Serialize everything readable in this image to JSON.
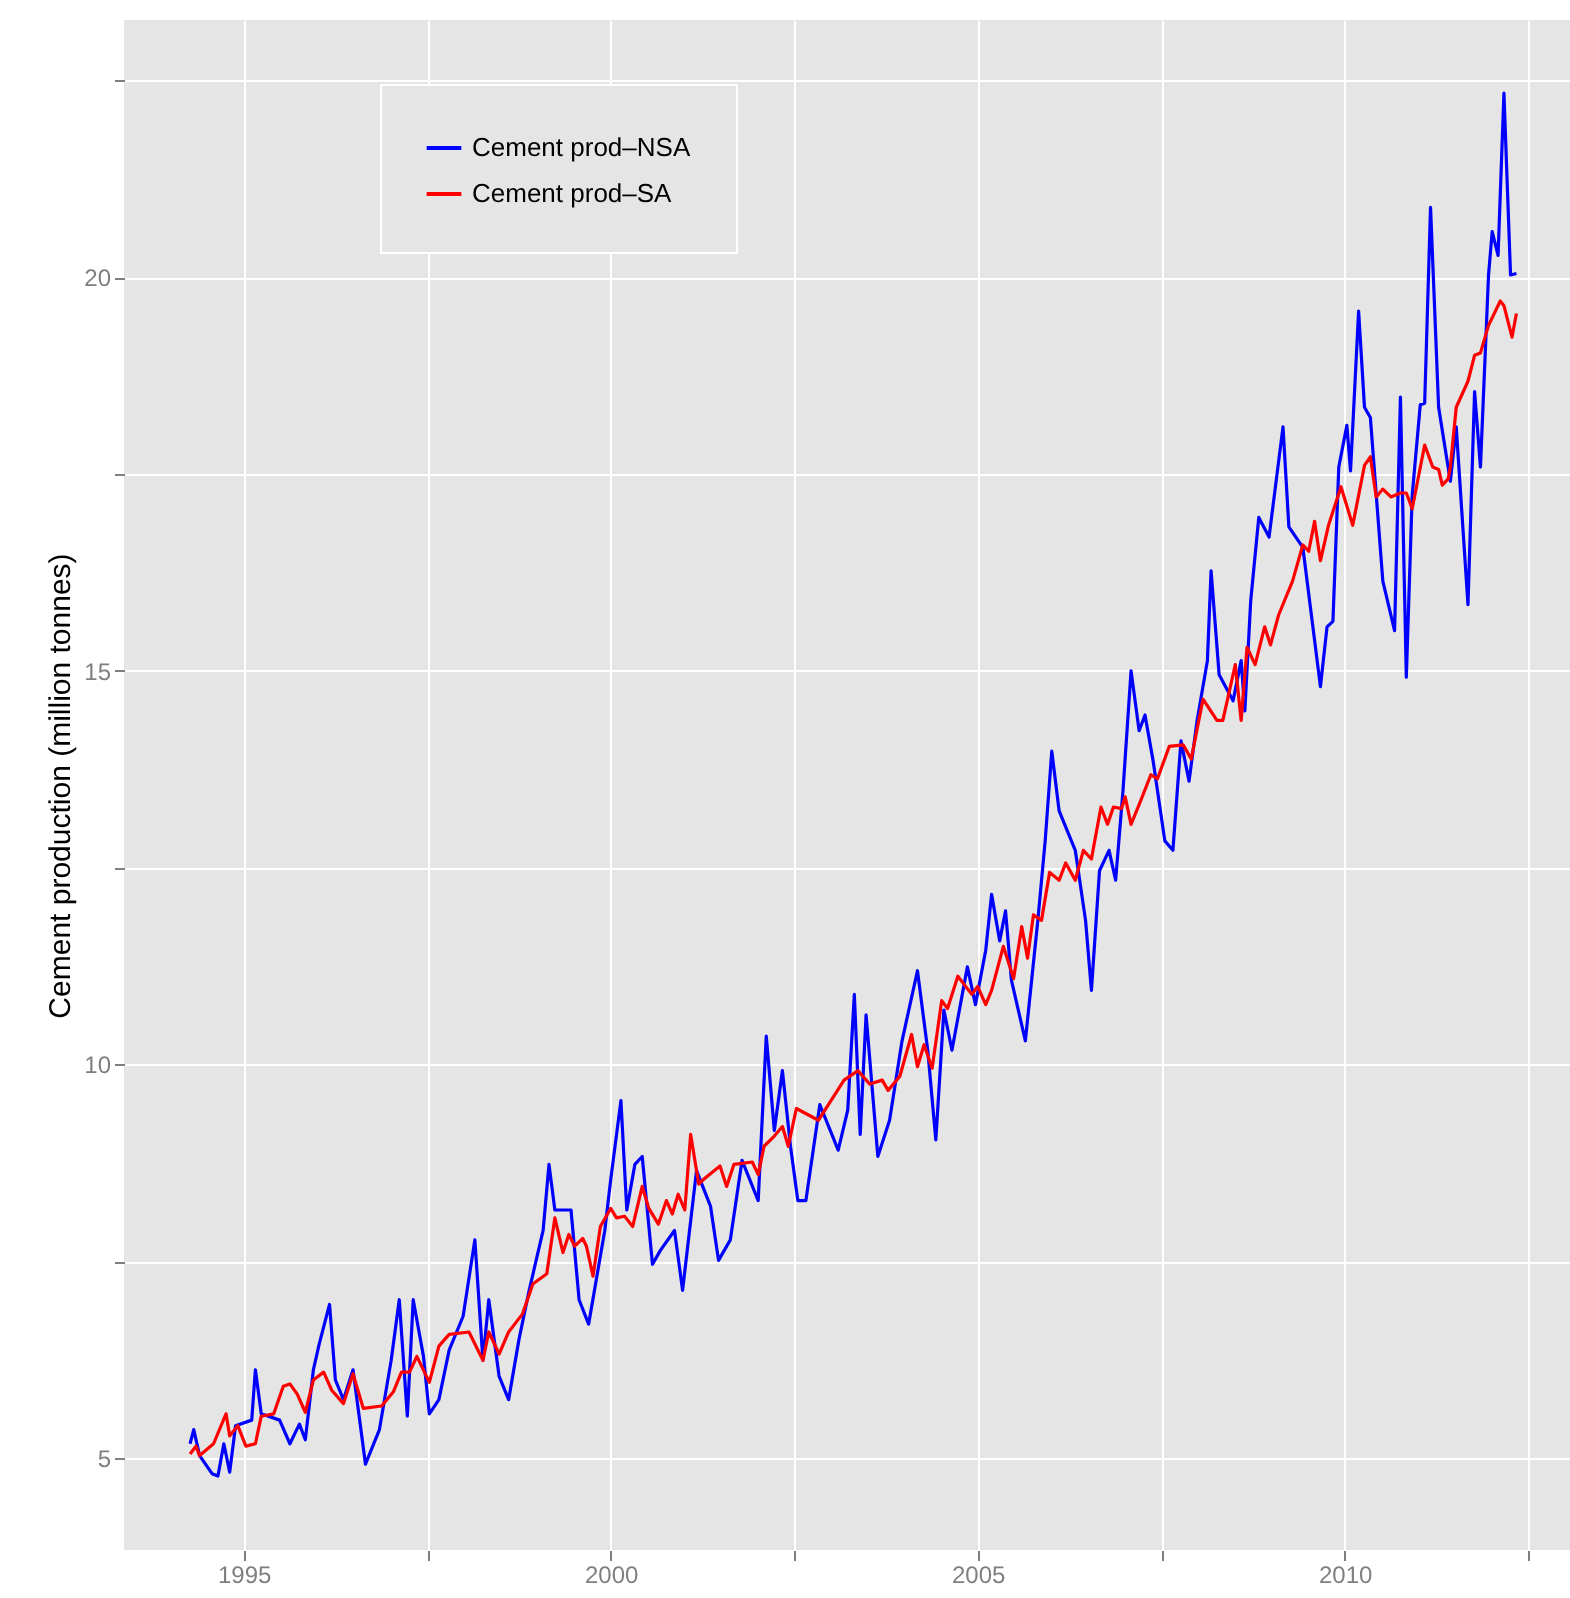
{
  "chart_data": {
    "type": "line",
    "ylabel": "Cement production (million tonnes)",
    "xlim": [
      1993.37,
      2013.07
    ],
    "ylim": [
      3.83,
      23.27
    ],
    "xticks": [
      1995,
      {
        "value": 1997.5,
        "label": null
      },
      2000,
      {
        "value": 2002.5,
        "label": null
      },
      2005,
      {
        "value": 2007.5,
        "label": null
      },
      2010,
      {
        "value": 2012.5,
        "label": null
      }
    ],
    "yticks": [
      5,
      {
        "value": 7.5,
        "label": null
      },
      10,
      {
        "value": 12.5,
        "label": null
      },
      15,
      {
        "value": 17.5,
        "label": null
      },
      20,
      {
        "value": 22.5,
        "label": null
      }
    ],
    "grid": true,
    "legend": "top left",
    "series": [
      {
        "name": "Cement prod–NSA",
        "color": "#0000ff",
        "x": [
          1994.27,
          1994.32,
          1994.4,
          1994.57,
          1994.65,
          1994.73,
          1994.81,
          1994.89,
          1995.11,
          1995.16,
          1995.24,
          1995.49,
          1995.63,
          1995.76,
          1995.84,
          1995.95,
          1996.03,
          1996.17,
          1996.25,
          1996.36,
          1996.49,
          1996.66,
          1996.85,
          1997.01,
          1997.12,
          1997.23,
          1997.31,
          1997.45,
          1997.53,
          1997.66,
          1997.8,
          1997.99,
          1998.15,
          1998.26,
          1998.34,
          1998.48,
          1998.61,
          1998.75,
          1998.89,
          1999.08,
          1999.16,
          1999.24,
          1999.46,
          1999.57,
          1999.7,
          1999.92,
          2000.0,
          2000.14,
          2000.22,
          2000.33,
          2000.43,
          2000.57,
          2000.68,
          2000.87,
          2000.98,
          2001.17,
          2001.36,
          2001.47,
          2001.63,
          2001.79,
          2002.01,
          2002.12,
          2002.23,
          2002.34,
          2002.45,
          2002.55,
          2002.66,
          2002.85,
          2003.1,
          2003.23,
          2003.32,
          2003.4,
          2003.48,
          2003.64,
          2003.8,
          2003.97,
          2004.18,
          2004.32,
          2004.43,
          2004.54,
          2004.65,
          2004.86,
          2004.97,
          2005.11,
          2005.19,
          2005.3,
          2005.38,
          2005.46,
          2005.65,
          2005.82,
          2005.92,
          2006.01,
          2006.11,
          2006.33,
          2006.47,
          2006.55,
          2006.66,
          2006.79,
          2006.88,
          2006.98,
          2007.09,
          2007.2,
          2007.28,
          2007.39,
          2007.55,
          2007.66,
          2007.77,
          2007.88,
          2007.99,
          2008.13,
          2008.18,
          2008.29,
          2008.48,
          2008.59,
          2008.64,
          2008.72,
          2008.83,
          2008.97,
          2009.16,
          2009.24,
          2009.43,
          2009.67,
          2009.76,
          2009.84,
          2009.92,
          2010.03,
          2010.08,
          2010.19,
          2010.27,
          2010.35,
          2010.52,
          2010.68,
          2010.76,
          2010.84,
          2010.92,
          2011.03,
          2011.09,
          2011.17,
          2011.28,
          2011.44,
          2011.52,
          2011.68,
          2011.77,
          2011.85,
          2011.96,
          2012.01,
          2012.09,
          2012.17,
          2012.26,
          2012.34
        ],
        "values": [
          5.18,
          5.36,
          5.03,
          4.8,
          4.77,
          5.18,
          4.82,
          5.41,
          5.48,
          6.12,
          5.56,
          5.48,
          5.18,
          5.43,
          5.23,
          6.12,
          6.45,
          6.95,
          5.99,
          5.74,
          6.12,
          4.92,
          5.36,
          6.24,
          7.01,
          5.53,
          7.01,
          6.29,
          5.56,
          5.74,
          6.37,
          6.8,
          7.77,
          6.24,
          7.01,
          6.04,
          5.74,
          6.5,
          7.13,
          7.89,
          8.73,
          8.15,
          8.15,
          7.01,
          6.7,
          7.89,
          8.53,
          9.54,
          8.15,
          8.73,
          8.83,
          7.46,
          7.64,
          7.89,
          7.13,
          8.65,
          8.2,
          7.51,
          7.77,
          8.78,
          8.27,
          10.36,
          9.16,
          9.92,
          8.96,
          8.27,
          8.27,
          9.49,
          8.91,
          9.42,
          10.89,
          9.11,
          10.63,
          8.83,
          9.29,
          10.3,
          11.19,
          10.18,
          9.04,
          10.69,
          10.18,
          11.24,
          10.76,
          11.45,
          12.16,
          11.57,
          11.95,
          11.07,
          10.3,
          11.83,
          12.84,
          13.98,
          13.22,
          12.72,
          11.83,
          10.94,
          12.46,
          12.72,
          12.34,
          13.48,
          15.0,
          14.24,
          14.44,
          13.86,
          12.84,
          12.72,
          14.11,
          13.6,
          14.37,
          15.13,
          16.27,
          14.95,
          14.62,
          15.13,
          14.49,
          15.89,
          16.95,
          16.7,
          18.1,
          16.83,
          16.57,
          14.8,
          15.56,
          15.63,
          17.59,
          18.12,
          17.54,
          19.57,
          18.35,
          18.22,
          16.14,
          15.51,
          18.48,
          14.92,
          17.23,
          18.38,
          18.4,
          20.89,
          18.35,
          17.41,
          18.1,
          15.84,
          18.55,
          17.59,
          20.03,
          20.58,
          20.28,
          22.34,
          20.03,
          20.05
        ]
      },
      {
        "name": "Cement prod–SA",
        "color": "#ff0000",
        "x": [
          1994.27,
          1994.35,
          1994.4,
          1994.59,
          1994.76,
          1994.81,
          1994.92,
          1995.03,
          1995.16,
          1995.24,
          1995.41,
          1995.54,
          1995.63,
          1995.73,
          1995.84,
          1995.95,
          1996.09,
          1996.2,
          1996.36,
          1996.49,
          1996.63,
          1996.88,
          1997.04,
          1997.15,
          1997.26,
          1997.36,
          1997.53,
          1997.66,
          1997.8,
          1998.07,
          1998.26,
          1998.34,
          1998.48,
          1998.61,
          1998.8,
          1998.94,
          1999.13,
          1999.24,
          1999.35,
          1999.43,
          1999.51,
          1999.62,
          1999.67,
          1999.76,
          1999.86,
          2000.0,
          2000.08,
          2000.19,
          2000.3,
          2000.43,
          2000.52,
          2000.65,
          2000.76,
          2000.84,
          2000.92,
          2001.01,
          2001.09,
          2001.2,
          2001.28,
          2001.49,
          2001.58,
          2001.68,
          2001.93,
          2002.01,
          2002.09,
          2002.23,
          2002.34,
          2002.42,
          2002.53,
          2002.83,
          2003.18,
          2003.37,
          2003.53,
          2003.7,
          2003.78,
          2003.94,
          2004.1,
          2004.18,
          2004.27,
          2004.38,
          2004.51,
          2004.59,
          2004.73,
          2004.92,
          2005.0,
          2005.11,
          2005.19,
          2005.35,
          2005.49,
          2005.6,
          2005.68,
          2005.76,
          2005.87,
          2005.98,
          2006.11,
          2006.2,
          2006.33,
          2006.44,
          2006.55,
          2006.68,
          2006.77,
          2006.85,
          2006.96,
          2007.01,
          2007.09,
          2007.2,
          2007.36,
          2007.45,
          2007.61,
          2007.8,
          2007.91,
          2008.07,
          2008.26,
          2008.34,
          2008.51,
          2008.59,
          2008.67,
          2008.78,
          2008.91,
          2008.99,
          2009.1,
          2009.29,
          2009.43,
          2009.51,
          2009.59,
          2009.67,
          2009.78,
          2009.95,
          2010.11,
          2010.27,
          2010.35,
          2010.43,
          2010.52,
          2010.63,
          2010.76,
          2010.84,
          2010.92,
          2011.09,
          2011.2,
          2011.28,
          2011.33,
          2011.41,
          2011.44,
          2011.52,
          2011.68,
          2011.77,
          2011.85,
          2011.96,
          2012.12,
          2012.17,
          2012.28,
          2012.34
        ],
        "values": [
          5.05,
          5.15,
          5.03,
          5.18,
          5.56,
          5.28,
          5.41,
          5.15,
          5.18,
          5.53,
          5.56,
          5.91,
          5.94,
          5.81,
          5.58,
          5.99,
          6.09,
          5.86,
          5.69,
          6.07,
          5.63,
          5.66,
          5.84,
          6.09,
          6.09,
          6.29,
          5.96,
          6.42,
          6.57,
          6.6,
          6.24,
          6.6,
          6.32,
          6.6,
          6.83,
          7.21,
          7.34,
          8.05,
          7.61,
          7.84,
          7.69,
          7.79,
          7.69,
          7.31,
          7.94,
          8.17,
          8.05,
          8.07,
          7.94,
          8.45,
          8.17,
          7.97,
          8.27,
          8.1,
          8.35,
          8.15,
          9.11,
          8.48,
          8.55,
          8.71,
          8.45,
          8.73,
          8.76,
          8.6,
          8.96,
          9.09,
          9.21,
          8.96,
          9.44,
          9.29,
          9.8,
          9.92,
          9.75,
          9.8,
          9.67,
          9.85,
          10.38,
          9.97,
          10.25,
          9.95,
          10.81,
          10.71,
          11.12,
          10.89,
          10.99,
          10.76,
          10.94,
          11.5,
          11.09,
          11.75,
          11.35,
          11.9,
          11.83,
          12.44,
          12.34,
          12.56,
          12.34,
          12.72,
          12.61,
          13.27,
          13.05,
          13.27,
          13.25,
          13.4,
          13.05,
          13.3,
          13.68,
          13.63,
          14.04,
          14.06,
          13.88,
          14.64,
          14.37,
          14.37,
          15.08,
          14.37,
          15.3,
          15.08,
          15.56,
          15.33,
          15.71,
          16.14,
          16.6,
          16.52,
          16.9,
          16.4,
          16.85,
          17.34,
          16.85,
          17.61,
          17.72,
          17.21,
          17.31,
          17.21,
          17.26,
          17.26,
          17.06,
          17.87,
          17.59,
          17.56,
          17.36,
          17.44,
          17.59,
          18.35,
          18.68,
          19.01,
          19.04,
          19.39,
          19.7,
          19.64,
          19.24,
          19.54
        ]
      }
    ]
  }
}
